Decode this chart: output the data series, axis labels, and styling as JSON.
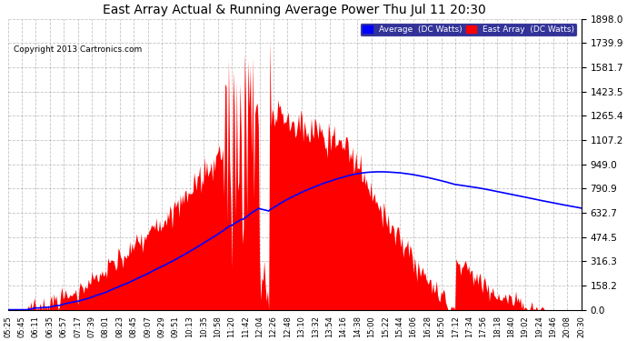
{
  "title": "East Array Actual & Running Average Power Thu Jul 11 20:30",
  "copyright": "Copyright 2013 Cartronics.com",
  "ylabel_right_values": [
    0.0,
    158.2,
    316.3,
    474.5,
    632.7,
    790.9,
    949.0,
    1107.2,
    1265.4,
    1423.5,
    1581.7,
    1739.9,
    1898.0
  ],
  "y_max": 1898.0,
  "legend_avg_label": "Average  (DC Watts)",
  "legend_east_label": "East Array  (DC Watts)",
  "bg_color": "#ffffff",
  "plot_bg_color": "#ffffff",
  "grid_color": "#aaaaaa",
  "bar_color": "#ff0000",
  "avg_line_color": "#0000ff",
  "title_color": "#000000",
  "copyright_color": "#000000",
  "tick_label_color": "#000000",
  "x_tick_labels": [
    "05:25",
    "05:45",
    "06:11",
    "06:35",
    "06:57",
    "07:17",
    "07:39",
    "08:01",
    "08:23",
    "08:45",
    "09:07",
    "09:29",
    "09:51",
    "10:13",
    "10:35",
    "10:58",
    "11:20",
    "11:42",
    "12:04",
    "12:26",
    "12:48",
    "13:10",
    "13:32",
    "13:54",
    "14:16",
    "14:38",
    "15:00",
    "15:22",
    "15:44",
    "16:06",
    "16:28",
    "16:50",
    "17:12",
    "17:34",
    "17:56",
    "18:18",
    "18:40",
    "19:02",
    "19:24",
    "19:46",
    "20:08",
    "20:30"
  ]
}
